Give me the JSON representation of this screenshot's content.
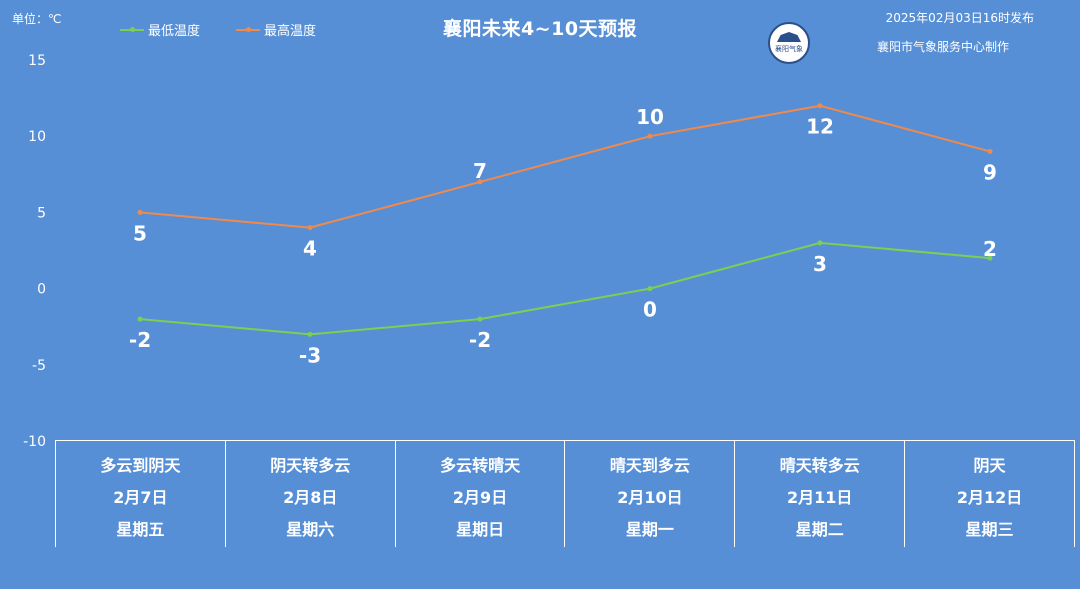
{
  "header": {
    "unit": "单位：℃",
    "title": "襄阳未来4~10天预报",
    "published": "2025年02月03日16时发布",
    "organization": "襄阳市气象服务中心制作",
    "logo_text": "襄阳气象"
  },
  "legend": [
    {
      "name": "最低温度",
      "color": "#7ccf52"
    },
    {
      "name": "最高温度",
      "color": "#f08a4b"
    }
  ],
  "chart_data": {
    "type": "line",
    "categories": [
      "2月7日",
      "2月8日",
      "2月9日",
      "2月10日",
      "2月11日",
      "2月12日"
    ],
    "series": [
      {
        "name": "最低温度",
        "values": [
          -2,
          -3,
          -2,
          0,
          3,
          2
        ],
        "color": "#7ccf52"
      },
      {
        "name": "最高温度",
        "values": [
          5,
          4,
          7,
          10,
          12,
          9
        ],
        "color": "#f08a4b"
      }
    ],
    "ylim": [
      -10,
      15
    ],
    "yticks": [
      15,
      10,
      5,
      0,
      -5,
      -10
    ],
    "ylabel": "单位：℃",
    "grid": false,
    "legend_position": "top-left"
  },
  "forecast": [
    {
      "weather": "多云到阴天",
      "date": "2月7日",
      "weekday": "星期五"
    },
    {
      "weather": "阴天转多云",
      "date": "2月8日",
      "weekday": "星期六"
    },
    {
      "weather": "多云转晴天",
      "date": "2月9日",
      "weekday": "星期日"
    },
    {
      "weather": "晴天到多云",
      "date": "2月10日",
      "weekday": "星期一"
    },
    {
      "weather": "晴天转多云",
      "date": "2月11日",
      "weekday": "星期二"
    },
    {
      "weather": "阴天",
      "date": "2月12日",
      "weekday": "星期三"
    }
  ]
}
